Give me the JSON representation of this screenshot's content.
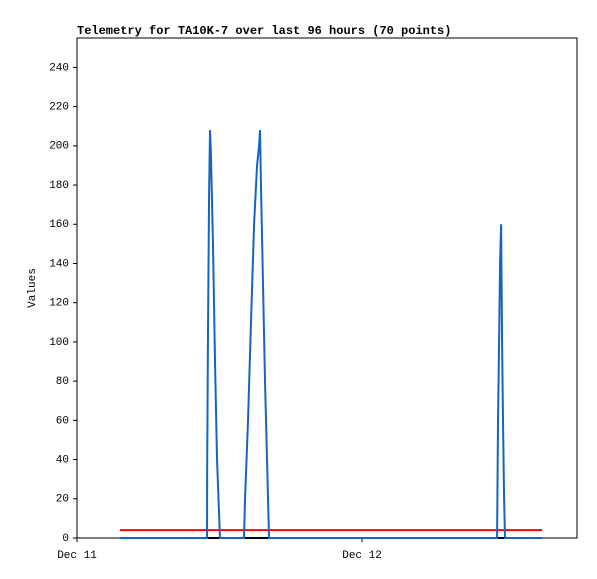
{
  "chart_data": {
    "type": "line",
    "title": "Telemetry for TA10K-7 over last 96 hours (70 points)",
    "y_label": "Values",
    "xlim": [
      0,
      42.1
    ],
    "xticks": [
      {
        "value": 0,
        "label": "Dec 11"
      },
      {
        "value": 24,
        "label": "Dec 12"
      }
    ],
    "ylim": [
      0,
      255
    ],
    "yticks": [
      0,
      20,
      40,
      60,
      80,
      100,
      120,
      140,
      160,
      180,
      200,
      220,
      240
    ],
    "series": [
      {
        "color": "#000000",
        "x": [
          3.62,
          39.16
        ],
        "values": [
          0,
          0
        ]
      },
      {
        "color": "#ff0000",
        "x": [
          3.62,
          39.16
        ],
        "values": [
          4,
          4
        ]
      },
      {
        "color": "#1565c0",
        "x": [
          3.62,
          10.95,
          10.96,
          11.03,
          11.12,
          11.2,
          11.28,
          11.45,
          11.62,
          11.79,
          12.04,
          14.06,
          14.15,
          14.4,
          14.65,
          14.91,
          15.16,
          15.33,
          15.41,
          15.49,
          15.66,
          15.83,
          16.0,
          16.17,
          35.37,
          35.45,
          35.54,
          35.62,
          35.71,
          35.79,
          35.87,
          35.96,
          36.04,
          39.16
        ],
        "values": [
          0,
          0,
          35,
          105,
          175,
          208,
          195,
          150,
          90,
          40,
          0,
          0,
          20,
          60,
          110,
          160,
          190,
          200,
          208,
          180,
          130,
          80,
          40,
          0,
          0,
          60,
          100,
          140,
          160,
          100,
          60,
          20,
          0,
          0
        ]
      }
    ]
  }
}
